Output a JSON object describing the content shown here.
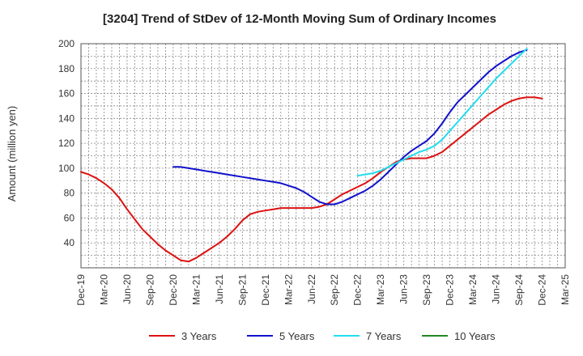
{
  "chart_data": {
    "type": "line",
    "title": "[3204]  Trend of StDev of 12-Month Moving Sum of Ordinary Incomes",
    "xlabel": "",
    "ylabel": "Amount (million yen)",
    "ylim": [
      20,
      200
    ],
    "yticks": [
      40,
      60,
      80,
      100,
      120,
      140,
      160,
      180,
      200
    ],
    "x_range": [
      0,
      63
    ],
    "x_ticks": [
      {
        "label": "Dec-19",
        "x": 0
      },
      {
        "label": "Mar-20",
        "x": 3
      },
      {
        "label": "Jun-20",
        "x": 6
      },
      {
        "label": "Sep-20",
        "x": 9
      },
      {
        "label": "Dec-20",
        "x": 12
      },
      {
        "label": "Mar-21",
        "x": 15
      },
      {
        "label": "Jun-21",
        "x": 18
      },
      {
        "label": "Sep-21",
        "x": 21
      },
      {
        "label": "Dec-21",
        "x": 24
      },
      {
        "label": "Mar-22",
        "x": 27
      },
      {
        "label": "Jun-22",
        "x": 30
      },
      {
        "label": "Sep-22",
        "x": 33
      },
      {
        "label": "Dec-22",
        "x": 36
      },
      {
        "label": "Mar-23",
        "x": 39
      },
      {
        "label": "Jun-23",
        "x": 42
      },
      {
        "label": "Sep-23",
        "x": 45
      },
      {
        "label": "Dec-23",
        "x": 48
      },
      {
        "label": "Mar-24",
        "x": 51
      },
      {
        "label": "Jun-24",
        "x": 54
      },
      {
        "label": "Sep-24",
        "x": 57
      },
      {
        "label": "Dec-24",
        "x": 60
      },
      {
        "label": "Mar-25",
        "x": 63
      }
    ],
    "grid": true,
    "legend_position": "bottom",
    "series": [
      {
        "name": "3 Years",
        "color": "#dd1111",
        "x_start": 0,
        "values": [
          97,
          95,
          92,
          88,
          83,
          76,
          67,
          59,
          51,
          45,
          39,
          34,
          30,
          26,
          25,
          28,
          32,
          36,
          40,
          45,
          51,
          58,
          63,
          65,
          66,
          67,
          68,
          68,
          68,
          68,
          68,
          69,
          71,
          75,
          79,
          82,
          85,
          88,
          92,
          97,
          101,
          105,
          107,
          108,
          108,
          108,
          110,
          113,
          118,
          123,
          128,
          133,
          138,
          143,
          147,
          151,
          154,
          156,
          157,
          157,
          156
        ]
      },
      {
        "name": "5 Years",
        "color": "#1111cc",
        "x_start": 12,
        "values": [
          101,
          101,
          100,
          99,
          98,
          97,
          96,
          95,
          94,
          93,
          92,
          91,
          90,
          89,
          88,
          86,
          84,
          81,
          77,
          73,
          71,
          71,
          73,
          76,
          79,
          82,
          86,
          91,
          97,
          103,
          109,
          114,
          118,
          122,
          128,
          136,
          145,
          153,
          159,
          165,
          171,
          177,
          182,
          186,
          190,
          193,
          195
        ]
      },
      {
        "name": "7 Years",
        "color": "#22ddee",
        "x_start": 36,
        "values": [
          94,
          95,
          96,
          98,
          101,
          104,
          107,
          110,
          113,
          115,
          118,
          123,
          130,
          137,
          144,
          151,
          158,
          165,
          172,
          178,
          184,
          190,
          196
        ]
      },
      {
        "name": "10 Years",
        "color": "#228822",
        "x_start": 0,
        "values": []
      }
    ]
  }
}
